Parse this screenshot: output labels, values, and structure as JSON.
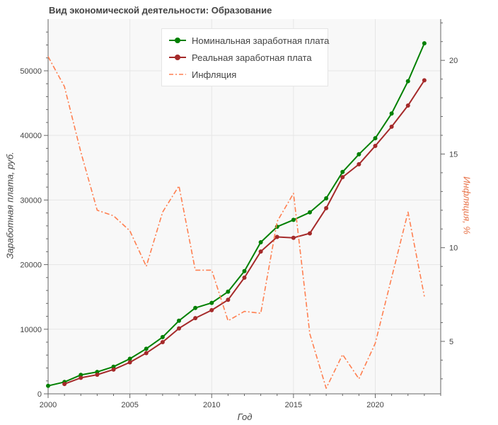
{
  "chart_data": {
    "type": "line",
    "title": "Вид экономической деятельности: Образование",
    "xlabel": "Год",
    "ylabel": "Заработная плата, руб.",
    "y2label": "Инфляция, %",
    "xlim": [
      2000,
      2024
    ],
    "ylim": [
      0,
      58000
    ],
    "y2lim": [
      2.2,
      22.2
    ],
    "x_ticks": [
      2000,
      2005,
      2010,
      2015,
      2020
    ],
    "y_ticks": [
      0,
      10000,
      20000,
      30000,
      40000,
      50000
    ],
    "y2_ticks": [
      5,
      10,
      15,
      20
    ],
    "grid": true,
    "legend_position": "top-center",
    "series": [
      {
        "name": "Номинальная заработная плата",
        "axis": "left",
        "color": "#008000",
        "style": "solid-markers",
        "x": [
          2000,
          2001,
          2002,
          2003,
          2004,
          2005,
          2006,
          2007,
          2008,
          2009,
          2010,
          2011,
          2012,
          2013,
          2014,
          2015,
          2016,
          2017,
          2018,
          2019,
          2020,
          2021,
          2022,
          2023
        ],
        "values": [
          1240,
          1830,
          2930,
          3390,
          4200,
          5430,
          6980,
          8780,
          11320,
          13300,
          14080,
          15810,
          18990,
          23460,
          25860,
          26930,
          28090,
          30260,
          34340,
          37080,
          39560,
          43390,
          48390,
          54260
        ]
      },
      {
        "name": "Реальная заработная плата",
        "axis": "left",
        "color": "#a52a2a",
        "style": "solid-markers",
        "x": [
          2001,
          2002,
          2003,
          2004,
          2005,
          2006,
          2007,
          2008,
          2009,
          2010,
          2011,
          2012,
          2013,
          2014,
          2015,
          2016,
          2017,
          2018,
          2019,
          2020,
          2021,
          2022,
          2023
        ],
        "values": [
          1520,
          2480,
          2960,
          3760,
          4880,
          6310,
          8000,
          10130,
          11720,
          12950,
          14550,
          17980,
          22030,
          24280,
          24150,
          24840,
          28740,
          33540,
          35540,
          38380,
          41350,
          44630,
          48530
        ]
      },
      {
        "name": "Инфляция",
        "axis": "right",
        "color": "#ff7f50",
        "style": "dashdot",
        "x": [
          2000,
          2001,
          2002,
          2003,
          2004,
          2005,
          2006,
          2007,
          2008,
          2009,
          2010,
          2011,
          2012,
          2013,
          2014,
          2015,
          2016,
          2017,
          2018,
          2019,
          2020,
          2021,
          2022,
          2023
        ],
        "values": [
          20.2,
          18.6,
          15.1,
          12.0,
          11.7,
          10.9,
          9.0,
          11.9,
          13.3,
          8.8,
          8.8,
          6.1,
          6.6,
          6.5,
          11.4,
          12.9,
          5.4,
          2.5,
          4.3,
          3.0,
          4.9,
          8.4,
          11.9,
          7.4
        ]
      }
    ]
  }
}
